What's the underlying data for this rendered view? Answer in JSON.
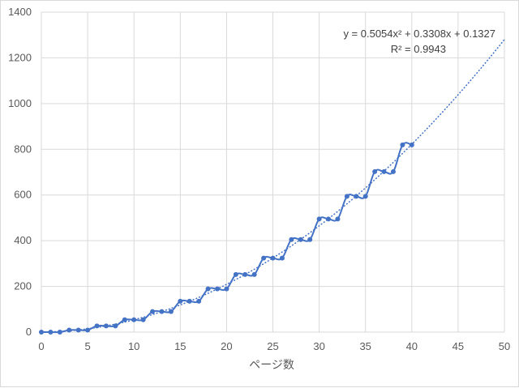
{
  "chart_data": {
    "type": "line",
    "title": "",
    "xlabel": "ページ数",
    "ylabel": "",
    "xlim": [
      0,
      50
    ],
    "ylim": [
      0,
      1400
    ],
    "x_ticks": [
      "0",
      "5",
      "10",
      "15",
      "20",
      "25",
      "30",
      "35",
      "40",
      "45",
      "50"
    ],
    "y_ticks": [
      "0",
      "200",
      "400",
      "600",
      "800",
      "1000",
      "1200",
      "1400"
    ],
    "grid": true,
    "colors": {
      "series": "#4472c4",
      "grid": "#d9d9d9",
      "tick_text": "#595959"
    },
    "series": [
      {
        "x": [
          0,
          1,
          2,
          3,
          4,
          5,
          6,
          7,
          8,
          9,
          10,
          11,
          12,
          13,
          14,
          15,
          16,
          17,
          18,
          19,
          20,
          21,
          22,
          23,
          24,
          25,
          26,
          27,
          28,
          29,
          30,
          31,
          32,
          33,
          34,
          35,
          36,
          37,
          38,
          39,
          40
        ],
        "y": [
          0,
          0,
          0,
          9,
          9,
          9,
          27,
          27,
          27,
          54,
          54,
          54,
          90,
          90,
          90,
          135,
          135,
          135,
          189,
          189,
          189,
          252,
          252,
          252,
          324,
          324,
          324,
          405,
          405,
          405,
          495,
          495,
          495,
          594,
          594,
          594,
          702,
          702,
          702,
          819,
          819
        ]
      }
    ],
    "trendline": {
      "type": "polynomial",
      "coefficients": [
        0.5054,
        0.3308,
        0.1327
      ],
      "x_range": [
        0,
        50
      ],
      "equation_label": "y = 0.5054x² + 0.3308x + 0.1327",
      "r2_label": "R² = 0.9943"
    }
  }
}
